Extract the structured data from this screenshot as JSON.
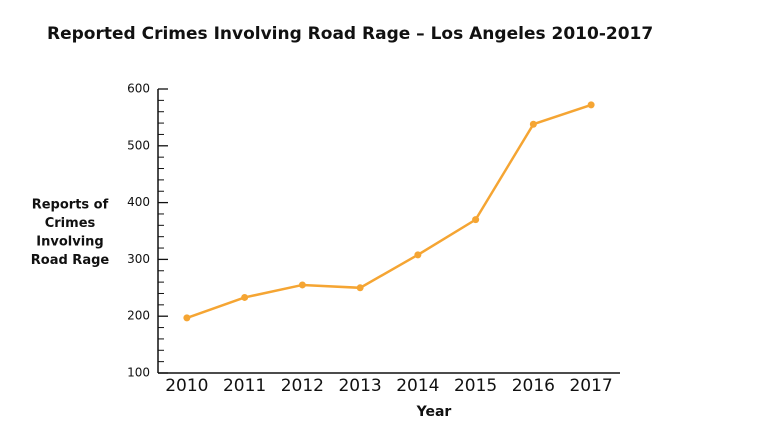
{
  "chart_data": {
    "type": "line",
    "title": "Reported Crimes Involving Road Rage – Los Angeles 2010-2017",
    "xlabel": "Year",
    "ylabel": [
      "Reports of",
      "Crimes",
      "Involving",
      "Road Rage"
    ],
    "categories": [
      "2010",
      "2011",
      "2012",
      "2013",
      "2014",
      "2015",
      "2016",
      "2017"
    ],
    "values": [
      197,
      233,
      255,
      250,
      308,
      370,
      538,
      572
    ],
    "color": "#f5a533",
    "ylim": [
      100,
      600
    ],
    "yticks": [
      100,
      200,
      300,
      400,
      500,
      600
    ],
    "yminorticks": [
      120,
      140,
      160,
      180,
      220,
      240,
      260,
      280,
      320,
      340,
      360,
      380,
      420,
      440,
      460,
      480,
      520,
      540,
      560,
      580
    ]
  }
}
